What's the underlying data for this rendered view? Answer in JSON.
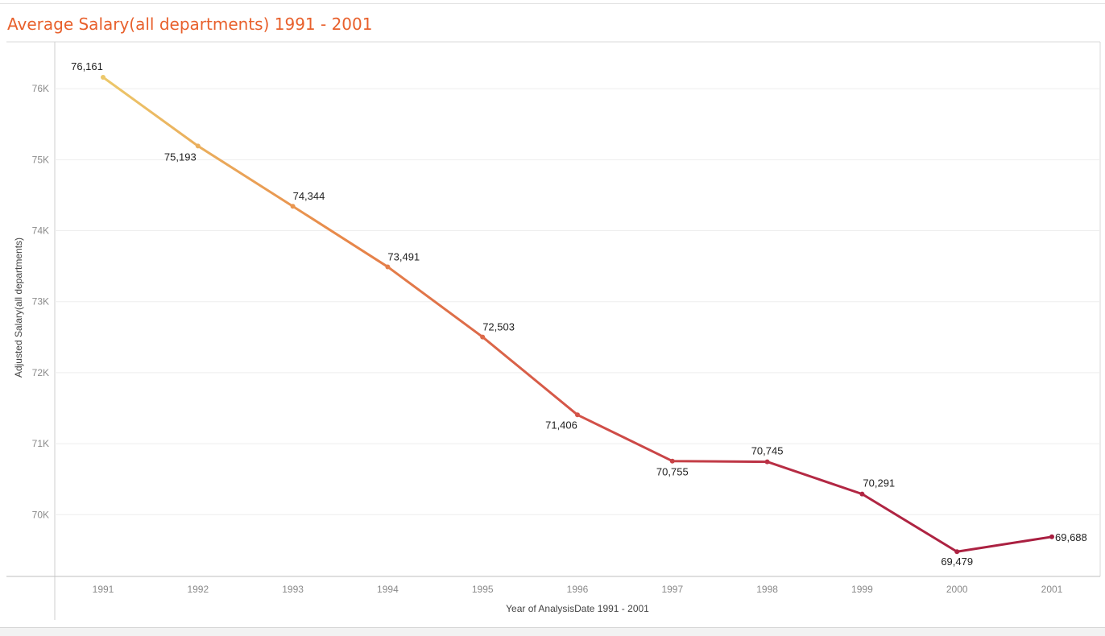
{
  "title": "Average Salary(all departments) 1991 - 2001",
  "chart_data": {
    "type": "line",
    "title": "Average Salary(all departments) 1991 - 2001",
    "xlabel": "Year of AnalysisDate 1991 - 2001",
    "ylabel": "Adjusted Salary(all departments)",
    "x": [
      "1991",
      "1992",
      "1993",
      "1994",
      "1995",
      "1996",
      "1997",
      "1998",
      "1999",
      "2000",
      "2001"
    ],
    "values": [
      76161,
      75193,
      74344,
      73491,
      72503,
      71406,
      70755,
      70745,
      70291,
      69479,
      69688
    ],
    "data_labels": [
      "76,161",
      "75,193",
      "74,344",
      "73,491",
      "72,503",
      "71,406",
      "70,755",
      "70,745",
      "70,291",
      "69,479",
      "69,688"
    ],
    "yticks": [
      70000,
      71000,
      72000,
      73000,
      74000,
      75000,
      76000
    ],
    "ytick_labels": [
      "70K",
      "71K",
      "72K",
      "73K",
      "74K",
      "75K",
      "76K"
    ],
    "ylim": [
      69130,
      76660
    ],
    "grid": true,
    "color_gradient": [
      "#ecc86a",
      "#e8894a",
      "#d45348",
      "#b32844",
      "#a81e40"
    ]
  }
}
